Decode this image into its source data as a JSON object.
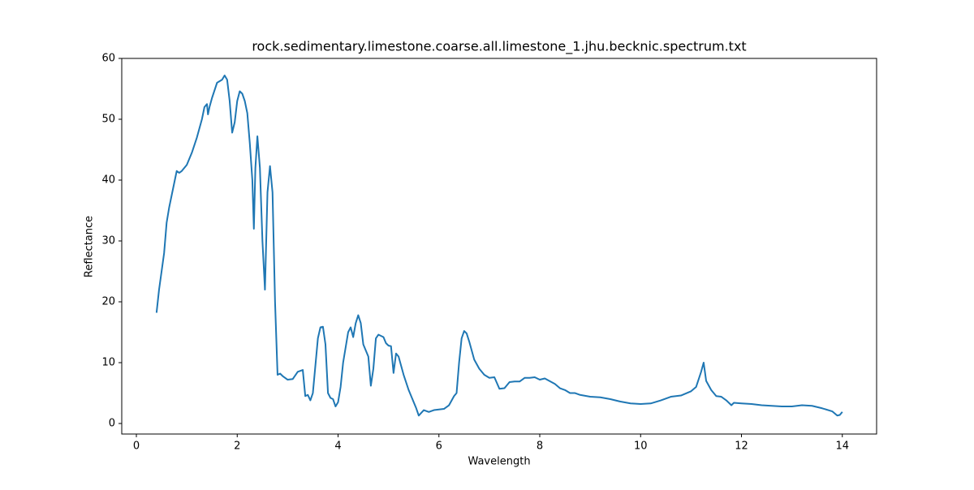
{
  "chart_data": {
    "type": "line",
    "title": "rock.sedimentary.limestone.coarse.all.limestone_1.jhu.becknic.spectrum.txt",
    "x_label": "Wavelength",
    "y_label": "Reflectance",
    "color": "#1f77b4",
    "x": [
      0.4,
      0.45,
      0.5,
      0.55,
      0.6,
      0.65,
      0.7,
      0.75,
      0.8,
      0.85,
      0.9,
      1.0,
      1.1,
      1.2,
      1.3,
      1.35,
      1.4,
      1.42,
      1.45,
      1.5,
      1.6,
      1.7,
      1.75,
      1.8,
      1.85,
      1.9,
      1.95,
      2.0,
      2.05,
      2.1,
      2.15,
      2.2,
      2.25,
      2.3,
      2.33,
      2.36,
      2.4,
      2.45,
      2.5,
      2.55,
      2.6,
      2.65,
      2.7,
      2.75,
      2.8,
      2.85,
      2.9,
      3.0,
      3.1,
      3.2,
      3.3,
      3.35,
      3.4,
      3.45,
      3.5,
      3.55,
      3.6,
      3.65,
      3.7,
      3.75,
      3.8,
      3.85,
      3.9,
      3.95,
      4.0,
      4.05,
      4.1,
      4.2,
      4.25,
      4.3,
      4.35,
      4.4,
      4.45,
      4.5,
      4.55,
      4.6,
      4.65,
      4.7,
      4.75,
      4.8,
      4.9,
      4.95,
      5.0,
      5.05,
      5.1,
      5.15,
      5.2,
      5.3,
      5.4,
      5.5,
      5.55,
      5.6,
      5.7,
      5.8,
      5.9,
      6.0,
      6.1,
      6.2,
      6.3,
      6.35,
      6.4,
      6.45,
      6.5,
      6.55,
      6.6,
      6.7,
      6.8,
      6.9,
      7.0,
      7.1,
      7.2,
      7.3,
      7.4,
      7.5,
      7.6,
      7.7,
      7.8,
      7.9,
      8.0,
      8.1,
      8.3,
      8.4,
      8.5,
      8.6,
      8.7,
      8.8,
      9.0,
      9.2,
      9.4,
      9.6,
      9.8,
      10.0,
      10.2,
      10.4,
      10.6,
      10.8,
      11.0,
      11.1,
      11.2,
      11.25,
      11.3,
      11.4,
      11.5,
      11.6,
      11.7,
      11.8,
      11.85,
      12.0,
      12.2,
      12.4,
      12.6,
      12.8,
      13.0,
      13.2,
      13.4,
      13.6,
      13.8,
      13.9,
      13.95,
      14.0
    ],
    "values": [
      18.2,
      22,
      25,
      28,
      33,
      35.5,
      37.5,
      39.5,
      41.5,
      41.2,
      41.5,
      42.5,
      44.5,
      47,
      50,
      52,
      52.5,
      50.8,
      52,
      53.5,
      56,
      56.5,
      57.2,
      56.5,
      53,
      47.8,
      49.5,
      53,
      54.6,
      54.2,
      53,
      51,
      46,
      40,
      32,
      42,
      47.2,
      42,
      30,
      22,
      38,
      42.3,
      38,
      20,
      8,
      8.2,
      7.8,
      7.2,
      7.3,
      8.5,
      8.8,
      4.5,
      4.7,
      3.8,
      5,
      9.5,
      14,
      15.8,
      15.9,
      13,
      5,
      4.2,
      4,
      2.8,
      3.5,
      6,
      10,
      15,
      15.8,
      14.2,
      16.5,
      17.8,
      16.5,
      13,
      12,
      11,
      6.2,
      9,
      14,
      14.6,
      14.2,
      13.2,
      12.8,
      12.7,
      8.3,
      11.5,
      11,
      8,
      5.5,
      3.5,
      2.5,
      1.3,
      2.2,
      1.9,
      2.2,
      2.3,
      2.4,
      3,
      4.5,
      5,
      10,
      14,
      15.2,
      14.8,
      13.5,
      10.5,
      9,
      8,
      7.5,
      7.6,
      5.7,
      5.8,
      6.8,
      6.9,
      6.9,
      7.5,
      7.5,
      7.6,
      7.2,
      7.4,
      6.5,
      5.8,
      5.5,
      5,
      5,
      4.7,
      4.4,
      4.3,
      4,
      3.6,
      3.3,
      3.2,
      3.3,
      3.8,
      4.4,
      4.6,
      5.3,
      6,
      8.5,
      10,
      7,
      5.5,
      4.5,
      4.4,
      3.8,
      3,
      3.4,
      3.3,
      3.2,
      3,
      2.9,
      2.8,
      2.8,
      3,
      2.9,
      2.5,
      2,
      1.3,
      1.4,
      1.9
    ],
    "xlim": [
      -0.29,
      14.68
    ],
    "ylim": [
      -1.73,
      60
    ],
    "xticks": [
      0,
      2,
      4,
      6,
      8,
      10,
      12,
      14
    ],
    "yticks": [
      0,
      10,
      20,
      30,
      40,
      50,
      60
    ],
    "grid": false
  }
}
